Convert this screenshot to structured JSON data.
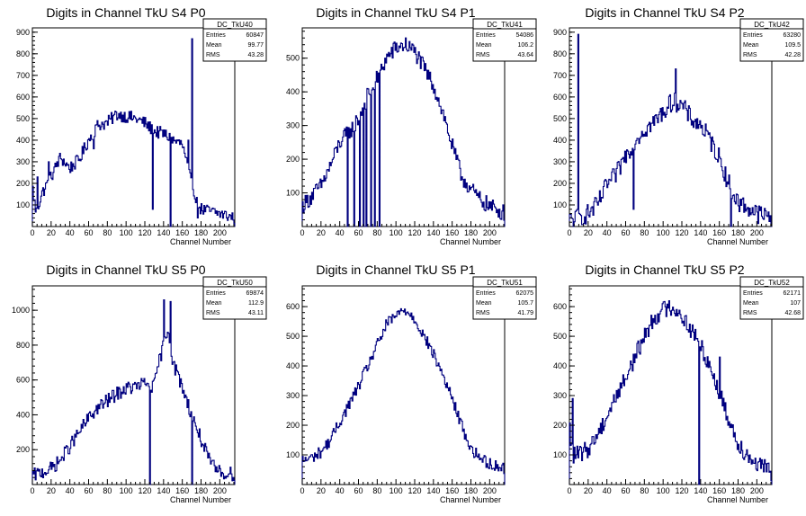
{
  "colors": {
    "histogram": "#00007f",
    "frame": "#000000"
  },
  "chart_data": [
    {
      "type": "bar",
      "title": "Digits in Channel TkU S4 P0",
      "xlabel": "Channel Number",
      "xlim": [
        0,
        216
      ],
      "ylim": [
        0,
        920
      ],
      "xticks": [
        "0",
        "20",
        "40",
        "60",
        "80",
        "100",
        "120",
        "140",
        "160",
        "180",
        "200"
      ],
      "yticks": [
        "100",
        "200",
        "300",
        "400",
        "500",
        "600",
        "700",
        "800",
        "900"
      ],
      "stats": {
        "name": "DC_TkU40",
        "entries": "60847",
        "mean": "99.77",
        "rms": "43.28"
      },
      "profile": [
        [
          0,
          190
        ],
        [
          4,
          60
        ],
        [
          10,
          150
        ],
        [
          20,
          230
        ],
        [
          30,
          320
        ],
        [
          40,
          270
        ],
        [
          50,
          310
        ],
        [
          60,
          400
        ],
        [
          70,
          470
        ],
        [
          80,
          480
        ],
        [
          90,
          520
        ],
        [
          100,
          510
        ],
        [
          110,
          500
        ],
        [
          120,
          480
        ],
        [
          130,
          440
        ],
        [
          140,
          430
        ],
        [
          150,
          400
        ],
        [
          160,
          380
        ],
        [
          170,
          190
        ],
        [
          180,
          80
        ],
        [
          200,
          60
        ],
        [
          216,
          40
        ]
      ],
      "spikes": [
        [
          5,
          230
        ],
        [
          17,
          300
        ],
        [
          26,
          300
        ],
        [
          65,
          360
        ],
        [
          128,
          80
        ],
        [
          147,
          0
        ],
        [
          166,
          400
        ],
        [
          170,
          870
        ],
        [
          176,
          40
        ]
      ],
      "jitter": 30
    },
    {
      "type": "bar",
      "title": "Digits in Channel TkU S4 P1",
      "xlabel": "Channel Number",
      "xlim": [
        0,
        216
      ],
      "ylim": [
        0,
        590
      ],
      "xticks": [
        "0",
        "20",
        "40",
        "60",
        "80",
        "100",
        "120",
        "140",
        "160",
        "180",
        "200"
      ],
      "yticks": [
        "100",
        "200",
        "300",
        "400",
        "500"
      ],
      "stats": {
        "name": "DC_TkU41",
        "entries": "54086",
        "mean": "106.2",
        "rms": "43.64"
      },
      "profile": [
        [
          0,
          60
        ],
        [
          10,
          90
        ],
        [
          20,
          120
        ],
        [
          30,
          180
        ],
        [
          40,
          250
        ],
        [
          50,
          280
        ],
        [
          60,
          320
        ],
        [
          70,
          390
        ],
        [
          80,
          440
        ],
        [
          90,
          500
        ],
        [
          100,
          530
        ],
        [
          110,
          540
        ],
        [
          120,
          520
        ],
        [
          130,
          470
        ],
        [
          140,
          420
        ],
        [
          150,
          340
        ],
        [
          160,
          240
        ],
        [
          170,
          150
        ],
        [
          180,
          110
        ],
        [
          190,
          80
        ],
        [
          200,
          60
        ],
        [
          216,
          40
        ]
      ],
      "spikes": [
        [
          48,
          0
        ],
        [
          55,
          0
        ],
        [
          61,
          0
        ],
        [
          65,
          0
        ],
        [
          68,
          0
        ],
        [
          73,
          0
        ],
        [
          77,
          0
        ],
        [
          82,
          0
        ],
        [
          110,
          560
        ]
      ],
      "jitter": 25
    },
    {
      "type": "bar",
      "title": "Digits in Channel TkU S4 P2",
      "xlabel": "Channel Number",
      "xlim": [
        0,
        216
      ],
      "ylim": [
        0,
        920
      ],
      "xticks": [
        "0",
        "20",
        "40",
        "60",
        "80",
        "100",
        "120",
        "140",
        "160",
        "180",
        "200"
      ],
      "yticks": [
        "100",
        "200",
        "300",
        "400",
        "500",
        "600",
        "700",
        "800",
        "900"
      ],
      "stats": {
        "name": "DC_TkU42",
        "entries": "63280",
        "mean": "109.5",
        "rms": "42.28"
      },
      "profile": [
        [
          0,
          30
        ],
        [
          10,
          40
        ],
        [
          20,
          60
        ],
        [
          30,
          100
        ],
        [
          40,
          190
        ],
        [
          50,
          240
        ],
        [
          60,
          330
        ],
        [
          70,
          400
        ],
        [
          80,
          450
        ],
        [
          90,
          480
        ],
        [
          100,
          530
        ],
        [
          110,
          580
        ],
        [
          120,
          560
        ],
        [
          130,
          500
        ],
        [
          140,
          470
        ],
        [
          150,
          400
        ],
        [
          160,
          320
        ],
        [
          170,
          200
        ],
        [
          180,
          110
        ],
        [
          190,
          90
        ],
        [
          200,
          60
        ],
        [
          216,
          40
        ]
      ],
      "spikes": [
        [
          9,
          890
        ],
        [
          40,
          180
        ],
        [
          68,
          80
        ],
        [
          113,
          730
        ],
        [
          136,
          500
        ],
        [
          172,
          0
        ],
        [
          178,
          150
        ]
      ],
      "jitter": 45
    },
    {
      "type": "bar",
      "title": "Digits in Channel TkU S5 P0",
      "xlabel": "Channel Number",
      "xlim": [
        0,
        216
      ],
      "ylim": [
        0,
        1140
      ],
      "xticks": [
        "0",
        "20",
        "40",
        "60",
        "80",
        "100",
        "120",
        "140",
        "160",
        "180",
        "200"
      ],
      "yticks": [
        "200",
        "400",
        "600",
        "800",
        "1000"
      ],
      "stats": {
        "name": "DC_TkU50",
        "entries": "69874",
        "mean": "112.9",
        "rms": "43.11"
      },
      "profile": [
        [
          0,
          50
        ],
        [
          10,
          70
        ],
        [
          20,
          90
        ],
        [
          30,
          140
        ],
        [
          40,
          220
        ],
        [
          50,
          300
        ],
        [
          60,
          380
        ],
        [
          70,
          440
        ],
        [
          80,
          480
        ],
        [
          90,
          520
        ],
        [
          100,
          550
        ],
        [
          110,
          560
        ],
        [
          120,
          580
        ],
        [
          130,
          560
        ],
        [
          135,
          700
        ],
        [
          140,
          800
        ],
        [
          145,
          900
        ],
        [
          150,
          700
        ],
        [
          160,
          560
        ],
        [
          170,
          400
        ],
        [
          180,
          260
        ],
        [
          190,
          120
        ],
        [
          200,
          70
        ],
        [
          216,
          60
        ]
      ],
      "spikes": [
        [
          125,
          0
        ],
        [
          140,
          1060
        ],
        [
          147,
          1050
        ],
        [
          170,
          0
        ]
      ],
      "jitter": 40
    },
    {
      "type": "bar",
      "title": "Digits in Channel TkU S5 P1",
      "xlabel": "Channel Number",
      "xlim": [
        0,
        216
      ],
      "ylim": [
        0,
        670
      ],
      "xticks": [
        "0",
        "20",
        "40",
        "60",
        "80",
        "100",
        "120",
        "140",
        "160",
        "180",
        "200"
      ],
      "yticks": [
        "100",
        "200",
        "300",
        "400",
        "500",
        "600"
      ],
      "stats": {
        "name": "DC_TkU51",
        "entries": "62075",
        "mean": "105.7",
        "rms": "41.79"
      },
      "profile": [
        [
          0,
          80
        ],
        [
          10,
          90
        ],
        [
          20,
          110
        ],
        [
          30,
          150
        ],
        [
          40,
          210
        ],
        [
          50,
          270
        ],
        [
          60,
          330
        ],
        [
          70,
          400
        ],
        [
          80,
          470
        ],
        [
          90,
          540
        ],
        [
          100,
          570
        ],
        [
          110,
          590
        ],
        [
          120,
          560
        ],
        [
          130,
          500
        ],
        [
          140,
          440
        ],
        [
          150,
          370
        ],
        [
          160,
          290
        ],
        [
          170,
          200
        ],
        [
          180,
          120
        ],
        [
          190,
          90
        ],
        [
          200,
          70
        ],
        [
          216,
          55
        ]
      ],
      "spikes": [],
      "jitter": 20
    },
    {
      "type": "bar",
      "title": "Digits in Channel TkU S5 P2",
      "xlabel": "Channel Number",
      "xlim": [
        0,
        216
      ],
      "ylim": [
        0,
        670
      ],
      "xticks": [
        "0",
        "20",
        "40",
        "60",
        "80",
        "100",
        "120",
        "140",
        "160",
        "180",
        "200"
      ],
      "yticks": [
        "100",
        "200",
        "300",
        "400",
        "500",
        "600"
      ],
      "stats": {
        "name": "DC_TkU52",
        "entries": "62171",
        "mean": "107",
        "rms": "42.68"
      },
      "profile": [
        [
          0,
          200
        ],
        [
          3,
          100
        ],
        [
          10,
          100
        ],
        [
          20,
          120
        ],
        [
          30,
          170
        ],
        [
          40,
          230
        ],
        [
          50,
          300
        ],
        [
          60,
          360
        ],
        [
          70,
          430
        ],
        [
          80,
          500
        ],
        [
          90,
          560
        ],
        [
          100,
          590
        ],
        [
          110,
          600
        ],
        [
          120,
          570
        ],
        [
          130,
          520
        ],
        [
          140,
          470
        ],
        [
          150,
          400
        ],
        [
          160,
          310
        ],
        [
          170,
          220
        ],
        [
          180,
          140
        ],
        [
          190,
          100
        ],
        [
          200,
          70
        ],
        [
          216,
          40
        ]
      ],
      "spikes": [
        [
          3,
          290
        ],
        [
          138,
          0
        ],
        [
          160,
          430
        ]
      ],
      "jitter": 30
    }
  ]
}
